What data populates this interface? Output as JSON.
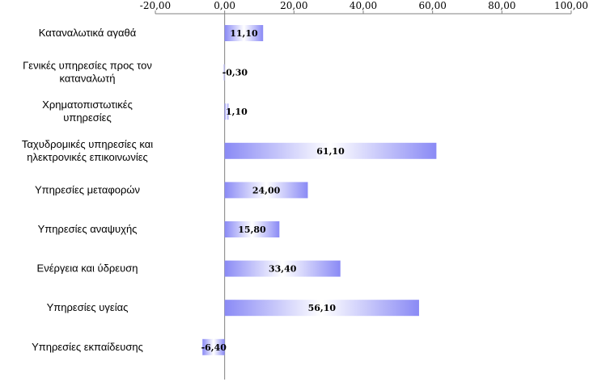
{
  "chart_data": {
    "type": "bar",
    "orientation": "horizontal",
    "title": "",
    "xlabel": "",
    "ylabel": "",
    "xlim": [
      -20,
      100
    ],
    "x_ticks": [
      "-20,00",
      "0,00",
      "20,00",
      "40,00",
      "60,00",
      "80,00",
      "100,00"
    ],
    "x_tick_values": [
      -20,
      0,
      20,
      40,
      60,
      80,
      100
    ],
    "axis_position": "top",
    "grid": false,
    "legend": "none",
    "bar_color": "#8a8af5",
    "categories": [
      [
        "Καταναλωτικά αγαθά"
      ],
      [
        "Γενικές υπηρεσίες προς τον",
        "καταναλωτή"
      ],
      [
        "Χρηματοπιστωτικές",
        "υπηρεσίες"
      ],
      [
        "Ταχυδρομικές υπηρεσίες και",
        "ηλεκτρονικές επικοινωνίες"
      ],
      [
        "Υπηρεσίες μεταφορών"
      ],
      [
        "Υπηρεσίες αναψυχής"
      ],
      [
        "Ενέργεια και ύδρευση"
      ],
      [
        "Υπηρεσίες υγείας"
      ],
      [
        "Υπηρεσίες εκπαίδευσης"
      ]
    ],
    "values": [
      11.1,
      -0.3,
      1.1,
      61.1,
      24.0,
      15.8,
      33.4,
      56.1,
      -6.4
    ],
    "value_labels": [
      "11,10",
      "-0,30",
      "1,10",
      "61,10",
      "24,00",
      "15,80",
      "33,40",
      "56,10",
      "-6,40"
    ]
  }
}
